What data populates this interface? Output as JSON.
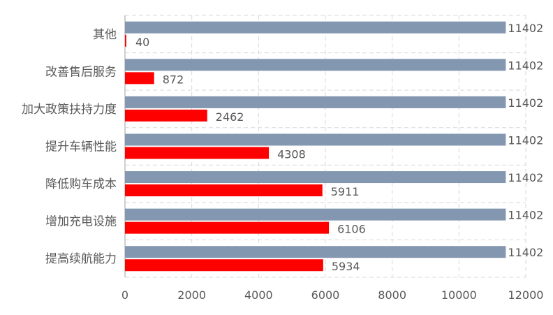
{
  "chart_data": {
    "type": "bar",
    "orientation": "horizontal",
    "categories": [
      "其他",
      "改善售后服务",
      "加大政策扶持力度",
      "提升车辆性能",
      "降低购车成本",
      "增加充电设施",
      "提高续航能力"
    ],
    "series": [
      {
        "values": [
          11402,
          11402,
          11402,
          11402,
          11402,
          11402,
          11402
        ],
        "color": "#8497b0"
      },
      {
        "values": [
          40,
          872,
          2462,
          4308,
          5911,
          6106,
          5934
        ],
        "color": "#ff0000"
      }
    ],
    "xlim": [
      0,
      12000
    ],
    "xticks": [
      0,
      2000,
      4000,
      6000,
      8000,
      10000,
      12000
    ],
    "title": "",
    "xlabel": "",
    "ylabel": "",
    "grid": true,
    "legend": "none",
    "data_labels": true
  }
}
